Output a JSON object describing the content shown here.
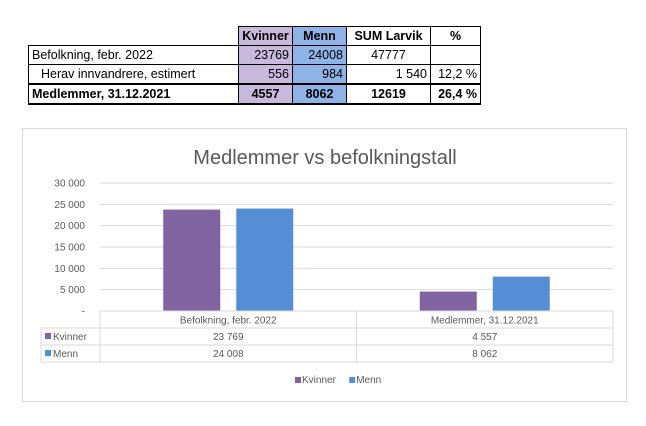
{
  "table": {
    "headers": [
      "",
      "Kvinner",
      "Menn",
      "SUM Larvik",
      "%"
    ],
    "rows": [
      [
        "Befolkning, febr. 2022",
        "23769",
        "24008",
        "47777",
        ""
      ],
      [
        "Herav innvandrere, estimert",
        "556",
        "984",
        "1 540",
        "12,2 %"
      ],
      [
        "Medlemmer, 31.12.2021",
        "4557",
        "8062",
        "12619",
        "26,4 %"
      ]
    ]
  },
  "colors": {
    "kvinner": "#8064a2",
    "menn": "#558ed5",
    "kvinner_light": "#c9b9dc",
    "menn_light": "#8fb3e6"
  },
  "chart_data": {
    "type": "bar",
    "title": "Medlemmer vs befolkningstall",
    "categories": [
      "Befolkning, febr. 2022",
      "Medlemmer, 31.12.2021"
    ],
    "series": [
      {
        "name": "Kvinner",
        "values": [
          23769,
          4557
        ],
        "labels": [
          "23 769",
          "4 557"
        ]
      },
      {
        "name": "Menn",
        "values": [
          24008,
          8062
        ],
        "labels": [
          "24 008",
          "8 062"
        ]
      }
    ],
    "yticks": [
      "-",
      "5 000",
      "10 000",
      "15 000",
      "20 000",
      "25 000",
      "30 000"
    ],
    "ylim": [
      0,
      30000
    ],
    "grid": true,
    "legend": "bottom"
  }
}
